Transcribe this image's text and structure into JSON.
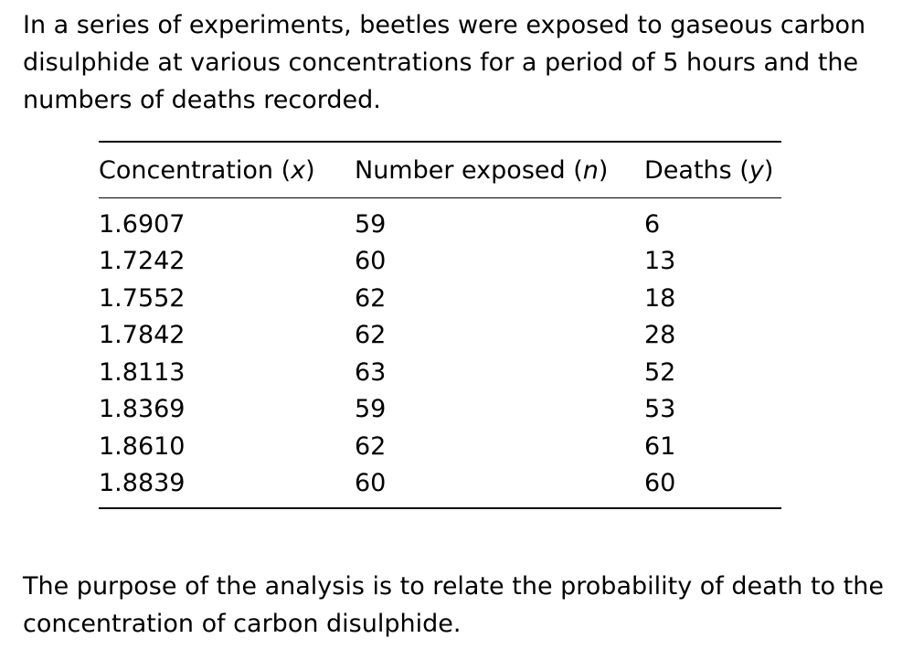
{
  "intro": "In a series of experiments, beetles were exposed to gaseous carbon disulphide at various concentrations for a period of 5 hours and the numbers of deaths recorded.",
  "table": {
    "headers": [
      {
        "label": "Concentration",
        "var": "x"
      },
      {
        "label": "Number exposed",
        "var": "n"
      },
      {
        "label": "Deaths",
        "var": "y"
      }
    ],
    "rows": [
      [
        "1.6907",
        "59",
        "6"
      ],
      [
        "1.7242",
        "60",
        "13"
      ],
      [
        "1.7552",
        "62",
        "18"
      ],
      [
        "1.7842",
        "62",
        "28"
      ],
      [
        "1.8113",
        "63",
        "52"
      ],
      [
        "1.8369",
        "59",
        "53"
      ],
      [
        "1.8610",
        "62",
        "61"
      ],
      [
        "1.8839",
        "60",
        "60"
      ]
    ]
  },
  "outro": "The purpose of the analysis is to relate the probability of death to the concentration of carbon disulphide."
}
